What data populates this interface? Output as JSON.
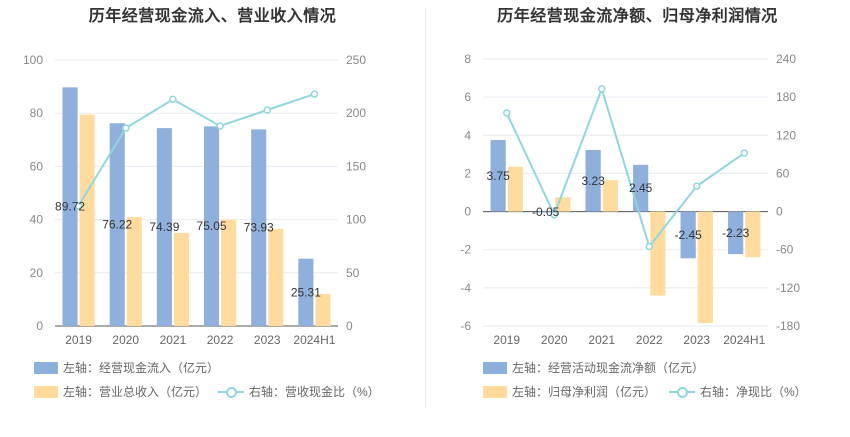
{
  "colors": {
    "bar1": "#8fb0dc",
    "bar2": "#ffdc9e",
    "line": "#8fd6dd",
    "grid": "#e8eaf2"
  },
  "chart_data": [
    {
      "type": "bar",
      "title": "历年经营现金流入、营业收入情况",
      "categories": [
        "2019",
        "2020",
        "2021",
        "2022",
        "2023",
        "2024H1"
      ],
      "ylim_left": [
        0,
        100
      ],
      "yticks_left": [
        "0",
        "20",
        "40",
        "60",
        "80",
        "100"
      ],
      "ylim_right": [
        0,
        250
      ],
      "yticks_right": [
        "0",
        "50",
        "100",
        "150",
        "200",
        "250"
      ],
      "series": [
        {
          "name": "左轴：经营现金流入（亿元）",
          "axis": "left",
          "kind": "bar",
          "values": [
            89.72,
            76.22,
            74.39,
            75.05,
            73.93,
            25.31
          ],
          "labels": [
            "89.72",
            "76.22",
            "74.39",
            "75.05",
            "73.93",
            "25.31"
          ]
        },
        {
          "name": "左轴：营业总收入（亿元）",
          "axis": "left",
          "kind": "bar",
          "values": [
            79.5,
            41.0,
            35.0,
            40.0,
            36.5,
            12.0
          ]
        },
        {
          "name": "右轴：营收现金比（%）",
          "axis": "right",
          "kind": "line",
          "values": [
            113,
            186,
            213,
            188,
            203,
            218
          ]
        }
      ],
      "legend": "bottom"
    },
    {
      "type": "bar",
      "title": "历年经营现金流净额、归母净利润情况",
      "categories": [
        "2019",
        "2020",
        "2021",
        "2022",
        "2023",
        "2024H1"
      ],
      "ylim_left": [
        -6,
        8
      ],
      "yticks_left": [
        "-6",
        "-4",
        "-2",
        "0",
        "2",
        "4",
        "6",
        "8"
      ],
      "ylim_right": [
        -180,
        240
      ],
      "yticks_right": [
        "-180",
        "-120",
        "-60",
        "0",
        "60",
        "120",
        "180",
        "240"
      ],
      "series": [
        {
          "name": "左轴：经营活动现金流净额（亿元）",
          "axis": "left",
          "kind": "bar",
          "values": [
            3.75,
            -0.05,
            3.23,
            2.45,
            -2.45,
            -2.23
          ],
          "labels": [
            "3.75",
            "-0.05",
            "3.23",
            "2.45",
            "-2.45",
            "-2.23"
          ]
        },
        {
          "name": "左轴：归母净利润（亿元）",
          "axis": "left",
          "kind": "bar",
          "values": [
            2.35,
            0.75,
            1.65,
            -4.4,
            -5.85,
            -2.4
          ]
        },
        {
          "name": "右轴：净现比（%）",
          "axis": "right",
          "kind": "line",
          "values": [
            155,
            -5,
            193,
            -55,
            40,
            92
          ]
        }
      ],
      "legend": "bottom"
    }
  ]
}
